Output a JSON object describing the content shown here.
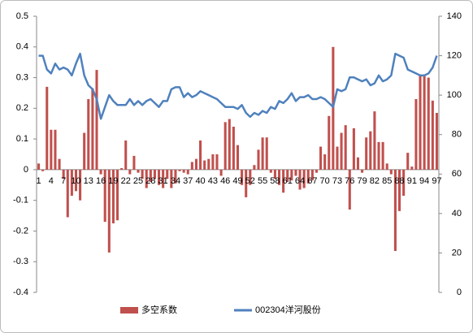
{
  "chart_data": {
    "type": "bar_line",
    "categories": [
      1,
      null,
      null,
      4,
      null,
      null,
      7,
      null,
      null,
      10,
      null,
      null,
      13,
      null,
      null,
      16,
      null,
      null,
      19,
      null,
      null,
      22,
      null,
      null,
      25,
      null,
      null,
      28,
      null,
      null,
      31,
      null,
      null,
      34,
      null,
      null,
      37,
      null,
      null,
      40,
      null,
      null,
      43,
      null,
      null,
      46,
      null,
      null,
      49,
      null,
      null,
      52,
      null,
      null,
      55,
      null,
      null,
      58,
      null,
      null,
      61,
      null,
      null,
      64,
      null,
      null,
      67,
      null,
      null,
      70,
      null,
      null,
      73,
      null,
      null,
      76,
      null,
      null,
      79,
      null,
      null,
      82,
      null,
      null,
      85,
      null,
      null,
      88,
      null,
      null,
      91,
      null,
      null,
      94,
      null,
      null,
      97
    ],
    "series": [
      {
        "name": "多空系数",
        "type": "bar",
        "color": "#c0504d",
        "values": [
          0.02,
          -0.005,
          0.27,
          0.13,
          0.13,
          0.035,
          -0.03,
          -0.155,
          -0.085,
          -0.07,
          -0.1,
          0.12,
          0.23,
          0.265,
          0.325,
          -0.015,
          -0.17,
          -0.27,
          -0.175,
          -0.165,
          0.005,
          0.095,
          -0.015,
          0.045,
          -0.01,
          -0.03,
          -0.06,
          -0.04,
          -0.03,
          -0.05,
          -0.06,
          -0.03,
          -0.06,
          -0.045,
          -0.005,
          -0.01,
          -0.015,
          0.025,
          0.035,
          0.095,
          0.03,
          0.035,
          0.05,
          0.05,
          -0.02,
          0.155,
          0.165,
          0.14,
          0.08,
          -0.05,
          -0.09,
          -0.05,
          0.015,
          0.065,
          0.105,
          0.105,
          -0.01,
          -0.03,
          -0.05,
          -0.075,
          -0.04,
          -0.035,
          -0.02,
          -0.065,
          -0.06,
          -0.045,
          -0.035,
          -0.01,
          0.075,
          0.05,
          0.175,
          0.4,
          0.075,
          0.12,
          0.145,
          -0.13,
          0.135,
          0.04,
          -0.01,
          0.105,
          0.125,
          0.19,
          0.09,
          0.09,
          0.02,
          -0.015,
          -0.265,
          -0.135,
          -0.085,
          0.055,
          0.01,
          0.23,
          0.31,
          0.31,
          0.3,
          0.225,
          0.185
        ]
      },
      {
        "name": "002304洋河股份",
        "type": "line",
        "axis": "y2",
        "color": "#4f81bd",
        "values": [
          120,
          120,
          113,
          111,
          116,
          113,
          114,
          113,
          110,
          116,
          121,
          110,
          105,
          103,
          98,
          88,
          94,
          100,
          97,
          95,
          95,
          95,
          98,
          95,
          97,
          95,
          97,
          98,
          96,
          94,
          97,
          97,
          103,
          104,
          104,
          99,
          101,
          99,
          100,
          102,
          101,
          100,
          99,
          98,
          96,
          94,
          94,
          94,
          93,
          95,
          91,
          89,
          91,
          90,
          92,
          91,
          94,
          93,
          97,
          96,
          98,
          101,
          97,
          99,
          99,
          100,
          98,
          98,
          99,
          98,
          96,
          94,
          103,
          102,
          103,
          109,
          109,
          108,
          107,
          108,
          105,
          106,
          110,
          107,
          108,
          110,
          121,
          120,
          119,
          113,
          112,
          111,
          110,
          110,
          111,
          114,
          120
        ]
      }
    ],
    "ylim": [
      -0.4,
      0.5
    ],
    "yticks": [
      -0.4,
      -0.3,
      -0.2,
      -0.1,
      0,
      0.1,
      0.2,
      0.3,
      0.4,
      0.5
    ],
    "y2lim": [
      0,
      140
    ],
    "y2ticks": [
      0,
      20,
      40,
      60,
      80,
      100,
      120,
      140
    ],
    "legend": "bottom"
  }
}
